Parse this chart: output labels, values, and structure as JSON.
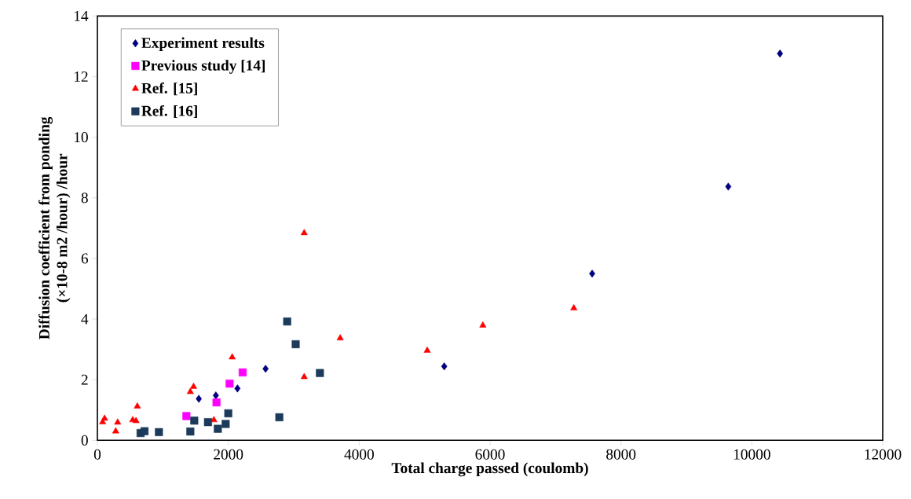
{
  "chart_data": {
    "type": "scatter",
    "xlabel": "Total charge passed (coulomb)",
    "ylabel": "Diffusion coefficient from ponding\n(×10-8 m2 /hour) /hour",
    "xlim": [
      0,
      12000
    ],
    "xticks": [
      0,
      2000,
      4000,
      6000,
      8000,
      10000,
      12000
    ],
    "ylim": [
      0,
      14
    ],
    "yticks": [
      0,
      2,
      4,
      6,
      8,
      10,
      12,
      14
    ],
    "grid": false,
    "legend": "top left",
    "series": [
      {
        "name": "Experiment results",
        "color": "#000080",
        "marker": "diamond",
        "x": [
          1550,
          1810,
          2140,
          2570,
          5300,
          7560,
          9640,
          10430
        ],
        "values": [
          1.37,
          1.48,
          1.71,
          2.36,
          2.44,
          5.5,
          8.37,
          12.76
        ]
      },
      {
        "name": "Previous study [14]",
        "color": "#ff00ff",
        "marker": "square",
        "x": [
          1360,
          1820,
          2020,
          2220
        ],
        "values": [
          0.8,
          1.25,
          1.87,
          2.24
        ]
      },
      {
        "name": "Ref. [15]",
        "color": "#ff0000",
        "marker": "triangle",
        "x": [
          80,
          110,
          310,
          280,
          540,
          590,
          610,
          1420,
          1470,
          1780,
          2060,
          3160,
          3710,
          3160,
          5040,
          5890,
          7280
        ],
        "values": [
          0.6,
          0.72,
          0.59,
          0.3,
          0.67,
          0.64,
          1.12,
          1.6,
          1.77,
          0.67,
          2.74,
          2.09,
          3.37,
          6.84,
          2.96,
          3.79,
          4.36
        ]
      },
      {
        "name": "Ref. [16]",
        "color": "#1c3a5a",
        "marker": "square",
        "x": [
          660,
          720,
          940,
          1420,
          1480,
          1690,
          1840,
          1960,
          2000,
          2780,
          2900,
          3030,
          3400
        ],
        "values": [
          0.24,
          0.3,
          0.27,
          0.29,
          0.65,
          0.6,
          0.38,
          0.54,
          0.89,
          0.76,
          3.92,
          3.17,
          2.22
        ]
      }
    ]
  }
}
